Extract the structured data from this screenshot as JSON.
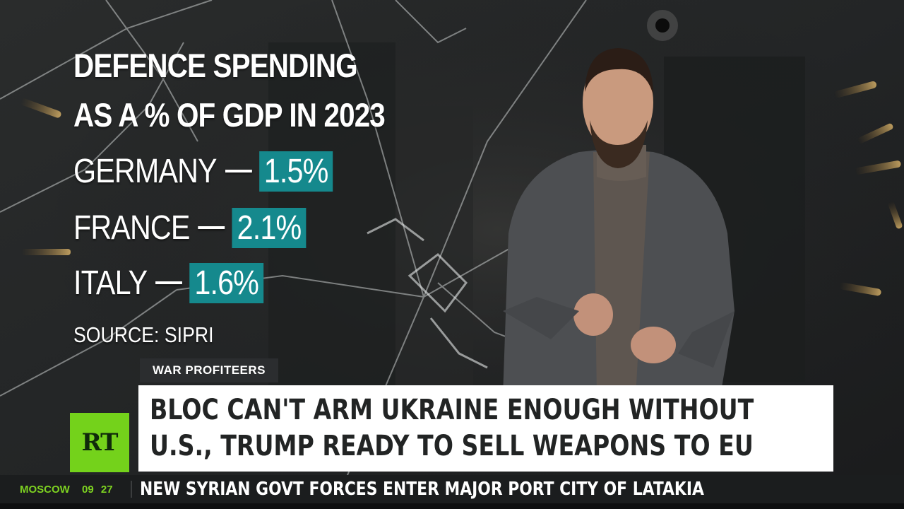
{
  "graphic": {
    "title_line1": "DEFENCE SPENDING",
    "title_line2": "AS A % OF GDP IN 2023",
    "stats": [
      {
        "country": "GERMANY",
        "value": "1.5%"
      },
      {
        "country": "FRANCE",
        "value": "2.1%"
      },
      {
        "country": "ITALY",
        "value": "1.6%"
      }
    ],
    "source": "SOURCE: SIPRI",
    "accent_color": "#15898d"
  },
  "lower_third": {
    "show_tag": "WAR PROFITEERS",
    "headline_line1": "BLOC CAN'T ARM UKRAINE ENOUGH WITHOUT",
    "headline_line2": "U.S., TRUMP READY TO SELL WEAPONS TO EU",
    "logo": "RT",
    "logo_color": "#74d21b"
  },
  "ticker": {
    "city": "MOSCOW",
    "time": "09 27",
    "news": "NEW SYRIAN GOVT FORCES ENTER MAJOR PORT CITY OF LATAKIA"
  }
}
